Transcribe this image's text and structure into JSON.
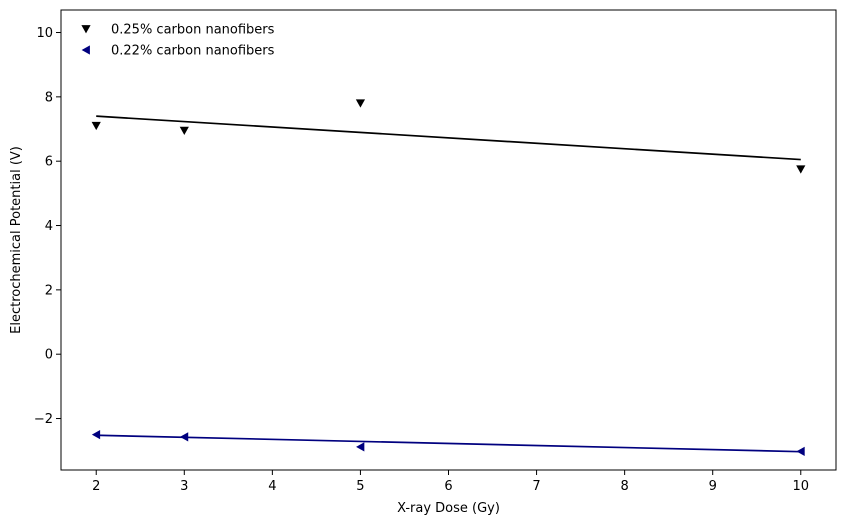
{
  "chart_data": {
    "type": "scatter",
    "xlabel": "X-ray Dose (Gy)",
    "ylabel": "Electrochemical Potential (V)",
    "xlim": [
      1.6,
      10.4
    ],
    "ylim": [
      -3.6,
      10.7
    ],
    "x_ticks": [
      2,
      3,
      4,
      5,
      6,
      7,
      8,
      9,
      10
    ],
    "y_ticks": [
      -2,
      0,
      2,
      4,
      6,
      8,
      10
    ],
    "y_tick_labels": [
      "−2",
      "0",
      "2",
      "4",
      "6",
      "8",
      "10"
    ],
    "legend_position": "top-left",
    "grid": false,
    "series": [
      {
        "name": "0.25% carbon nanofibers",
        "marker": "triangle-down",
        "color": "#000000",
        "x": [
          2,
          3,
          5,
          10
        ],
        "y": [
          7.1,
          6.95,
          7.8,
          5.75
        ],
        "fit_line": {
          "x": [
            2,
            10
          ],
          "y": [
            7.4,
            6.05
          ]
        }
      },
      {
        "name": "0.22% carbon nanofibers",
        "marker": "triangle-left",
        "color": "#00007f",
        "x": [
          2,
          3,
          5,
          10
        ],
        "y": [
          -2.5,
          -2.57,
          -2.88,
          -3.02
        ],
        "fit_line": {
          "x": [
            2,
            10
          ],
          "y": [
            -2.52,
            -3.03
          ]
        }
      }
    ]
  }
}
